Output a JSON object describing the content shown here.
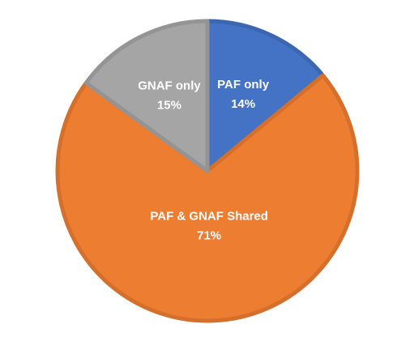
{
  "chart_data": {
    "type": "pie",
    "categories": [
      "PAF only",
      "PAF & GNAF Shared",
      "GNAF only"
    ],
    "values": [
      14,
      71,
      15
    ],
    "value_labels": [
      "14%",
      "71%",
      "15%"
    ],
    "colors": [
      "#4472c4",
      "#ed7d31",
      "#a5a5a5"
    ]
  }
}
